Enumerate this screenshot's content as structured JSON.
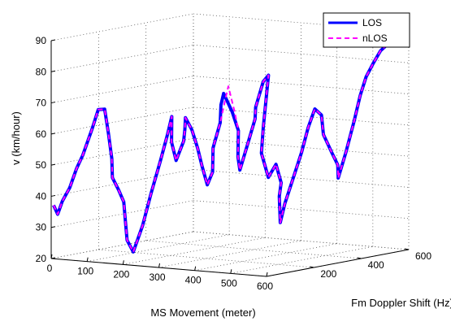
{
  "chart_data": {
    "type": "line",
    "projection": "3d",
    "xlabel": "MS Movement (meter)",
    "ylabel": "Fm Doppler Shift (Hz)",
    "zlabel": "v (km/hour)",
    "x_ticks": [
      "0",
      "100",
      "200",
      "300",
      "400",
      "500",
      "600"
    ],
    "y_ticks": [
      "200",
      "400",
      "600"
    ],
    "z_ticks": [
      "20",
      "30",
      "40",
      "50",
      "60",
      "70",
      "80",
      "90"
    ],
    "xlim": [
      0,
      600
    ],
    "ylim": [
      0,
      600
    ],
    "zlim": [
      20,
      90
    ],
    "grid": true,
    "legend_position": "top-right",
    "series": [
      {
        "name": "LOS",
        "color": "#0000ff",
        "style": "solid",
        "points": [
          [
            0,
            10,
            37
          ],
          [
            5,
            20,
            34
          ],
          [
            8,
            35,
            38
          ],
          [
            12,
            60,
            42
          ],
          [
            18,
            80,
            48
          ],
          [
            22,
            100,
            52
          ],
          [
            28,
            130,
            60
          ],
          [
            32,
            150,
            66
          ],
          [
            40,
            165,
            66
          ],
          [
            44,
            175,
            58
          ],
          [
            50,
            180,
            50
          ],
          [
            55,
            175,
            44
          ],
          [
            62,
            190,
            40
          ],
          [
            70,
            200,
            36
          ],
          [
            78,
            195,
            30
          ],
          [
            86,
            190,
            24
          ],
          [
            90,
            210,
            20
          ],
          [
            96,
            240,
            28
          ],
          [
            100,
            270,
            38
          ],
          [
            106,
            300,
            48
          ],
          [
            112,
            320,
            56
          ],
          [
            118,
            330,
            62
          ],
          [
            124,
            320,
            54
          ],
          [
            130,
            330,
            48
          ],
          [
            138,
            350,
            54
          ],
          [
            148,
            340,
            58
          ],
          [
            156,
            330,
            62
          ],
          [
            164,
            345,
            58
          ],
          [
            170,
            360,
            52
          ],
          [
            176,
            370,
            46
          ],
          [
            184,
            380,
            40
          ],
          [
            192,
            390,
            44
          ],
          [
            200,
            380,
            52
          ],
          [
            210,
            395,
            60
          ],
          [
            222,
            380,
            66
          ],
          [
            236,
            370,
            70
          ],
          [
            250,
            385,
            64
          ],
          [
            264,
            390,
            58
          ],
          [
            276,
            370,
            50
          ],
          [
            288,
            360,
            46
          ],
          [
            296,
            380,
            54
          ],
          [
            304,
            400,
            62
          ],
          [
            312,
            390,
            66
          ],
          [
            320,
            410,
            74
          ],
          [
            328,
            420,
            76
          ],
          [
            334,
            400,
            68
          ],
          [
            340,
            380,
            60
          ],
          [
            348,
            360,
            52
          ],
          [
            354,
            380,
            44
          ],
          [
            362,
            400,
            48
          ],
          [
            370,
            410,
            42
          ],
          [
            378,
            390,
            38
          ],
          [
            386,
            380,
            34
          ],
          [
            394,
            370,
            30
          ],
          [
            400,
            380,
            36
          ],
          [
            410,
            400,
            44
          ],
          [
            420,
            420,
            52
          ],
          [
            432,
            430,
            60
          ],
          [
            444,
            440,
            66
          ],
          [
            456,
            450,
            64
          ],
          [
            468,
            440,
            58
          ],
          [
            478,
            460,
            52
          ],
          [
            488,
            470,
            48
          ],
          [
            496,
            460,
            44
          ],
          [
            504,
            480,
            52
          ],
          [
            514,
            500,
            62
          ],
          [
            524,
            510,
            70
          ],
          [
            534,
            520,
            76
          ],
          [
            540,
            540,
            80
          ],
          [
            548,
            560,
            84
          ],
          [
            556,
            580,
            86
          ],
          [
            564,
            600,
            88
          ]
        ]
      },
      {
        "name": "nLOS",
        "color": "#ff00ff",
        "style": "dashed",
        "points": [
          [
            0,
            10,
            37
          ],
          [
            5,
            20,
            34
          ],
          [
            8,
            35,
            38
          ],
          [
            12,
            60,
            42
          ],
          [
            18,
            80,
            48
          ],
          [
            22,
            100,
            52
          ],
          [
            28,
            130,
            60
          ],
          [
            32,
            150,
            66
          ],
          [
            40,
            165,
            66
          ],
          [
            44,
            175,
            58
          ],
          [
            50,
            180,
            50
          ],
          [
            55,
            175,
            44
          ],
          [
            62,
            190,
            40
          ],
          [
            70,
            200,
            36
          ],
          [
            78,
            195,
            30
          ],
          [
            86,
            190,
            24
          ],
          [
            90,
            210,
            20
          ],
          [
            96,
            240,
            28
          ],
          [
            100,
            270,
            38
          ],
          [
            106,
            300,
            48
          ],
          [
            112,
            320,
            56
          ],
          [
            118,
            330,
            62
          ],
          [
            124,
            320,
            54
          ],
          [
            130,
            330,
            48
          ],
          [
            138,
            350,
            54
          ],
          [
            148,
            340,
            58
          ],
          [
            156,
            330,
            62
          ],
          [
            164,
            345,
            58
          ],
          [
            170,
            360,
            52
          ],
          [
            176,
            370,
            46
          ],
          [
            184,
            380,
            40
          ],
          [
            192,
            390,
            44
          ],
          [
            200,
            380,
            52
          ],
          [
            210,
            395,
            60
          ],
          [
            222,
            400,
            68
          ],
          [
            236,
            390,
            72
          ],
          [
            250,
            395,
            64
          ],
          [
            264,
            390,
            58
          ],
          [
            276,
            370,
            50
          ],
          [
            288,
            360,
            46
          ],
          [
            296,
            380,
            54
          ],
          [
            304,
            400,
            62
          ],
          [
            312,
            390,
            66
          ],
          [
            320,
            410,
            74
          ],
          [
            328,
            420,
            76
          ],
          [
            334,
            400,
            68
          ],
          [
            340,
            380,
            60
          ],
          [
            348,
            360,
            52
          ],
          [
            354,
            380,
            44
          ],
          [
            362,
            400,
            48
          ],
          [
            370,
            410,
            42
          ],
          [
            378,
            390,
            38
          ],
          [
            386,
            380,
            34
          ],
          [
            394,
            370,
            30
          ],
          [
            400,
            380,
            36
          ],
          [
            410,
            400,
            44
          ],
          [
            420,
            420,
            52
          ],
          [
            432,
            430,
            60
          ],
          [
            444,
            440,
            66
          ],
          [
            456,
            450,
            64
          ],
          [
            468,
            440,
            58
          ],
          [
            478,
            460,
            52
          ],
          [
            488,
            470,
            48
          ],
          [
            496,
            460,
            44
          ],
          [
            504,
            480,
            52
          ],
          [
            514,
            500,
            62
          ],
          [
            524,
            510,
            70
          ],
          [
            534,
            520,
            76
          ],
          [
            540,
            540,
            80
          ],
          [
            548,
            560,
            84
          ],
          [
            556,
            580,
            86
          ],
          [
            564,
            600,
            88
          ]
        ]
      }
    ]
  }
}
